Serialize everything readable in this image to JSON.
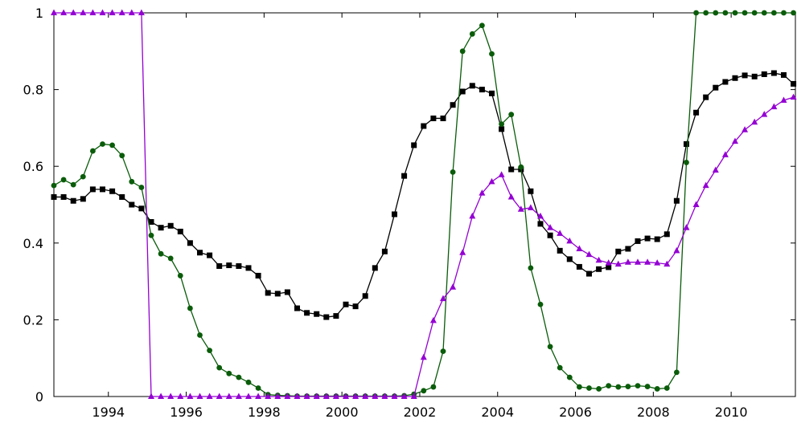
{
  "chart_data": {
    "type": "line",
    "title": "",
    "xlabel": "",
    "ylabel": "",
    "xlim": [
      1992.6,
      2011.65
    ],
    "ylim": [
      0,
      1
    ],
    "x_ticks": [
      1994,
      1996,
      1998,
      2000,
      2002,
      2004,
      2006,
      2008,
      2010
    ],
    "y_ticks": [
      0,
      0.2,
      0.4,
      0.6,
      0.8,
      1
    ],
    "x_tick_labels": [
      "1994",
      "1996",
      "1998",
      "2000",
      "2002",
      "2004",
      "2006",
      "2008",
      "2010"
    ],
    "y_tick_labels": [
      "0",
      "0.2",
      "0.4",
      "0.6",
      "0.8",
      "1"
    ],
    "grid": false,
    "x_start": 1992.6,
    "x_step": 0.25,
    "series": [
      {
        "color": "#000000",
        "marker": "square",
        "values": [
          0.52,
          0.52,
          0.51,
          0.515,
          0.54,
          0.54,
          0.535,
          0.52,
          0.5,
          0.49,
          0.455,
          0.44,
          0.445,
          0.43,
          0.4,
          0.375,
          0.368,
          0.34,
          0.342,
          0.34,
          0.335,
          0.315,
          0.27,
          0.268,
          0.272,
          0.23,
          0.218,
          0.215,
          0.207,
          0.21,
          0.24,
          0.235,
          0.262,
          0.335,
          0.378,
          0.475,
          0.575,
          0.655,
          0.705,
          0.725,
          0.725,
          0.76,
          0.795,
          0.81,
          0.8,
          0.79,
          0.697,
          0.592,
          0.592,
          0.535,
          0.45,
          0.42,
          0.38,
          0.358,
          0.338,
          0.32,
          0.332,
          0.337,
          0.378,
          0.385,
          0.405,
          0.412,
          0.41,
          0.423,
          0.51,
          0.658,
          0.74,
          0.78,
          0.805,
          0.82,
          0.83,
          0.837,
          0.834,
          0.84,
          0.843,
          0.838,
          0.815
        ]
      },
      {
        "color": "#0a5c0a",
        "marker": "circle",
        "values": [
          0.55,
          0.565,
          0.552,
          0.573,
          0.64,
          0.658,
          0.655,
          0.628,
          0.56,
          0.545,
          0.42,
          0.372,
          0.36,
          0.315,
          0.23,
          0.16,
          0.12,
          0.075,
          0.06,
          0.05,
          0.037,
          0.022,
          0.005,
          0.003,
          0.002,
          0.001,
          0.001,
          0.001,
          0.001,
          0.001,
          0.001,
          0.001,
          0.001,
          0.001,
          0.001,
          0.001,
          0.002,
          0.006,
          0.015,
          0.025,
          0.118,
          0.585,
          0.9,
          0.945,
          0.967,
          0.893,
          0.71,
          0.735,
          0.598,
          0.335,
          0.24,
          0.13,
          0.075,
          0.05,
          0.025,
          0.022,
          0.02,
          0.028,
          0.025,
          0.026,
          0.028,
          0.026,
          0.02,
          0.022,
          0.063,
          0.61,
          1,
          1,
          1,
          1,
          1,
          1,
          1,
          1,
          1,
          1,
          1
        ]
      },
      {
        "color": "#9400d3",
        "marker": "triangle",
        "values": [
          1,
          1,
          1,
          1,
          1,
          1,
          1,
          1,
          1,
          1,
          0,
          0,
          0,
          0,
          0,
          0,
          0,
          0,
          0,
          0,
          0,
          0,
          0,
          0,
          0,
          0,
          0,
          0,
          0,
          0,
          0,
          0,
          0,
          0,
          0,
          0,
          0,
          0,
          0.102,
          0.198,
          0.255,
          0.285,
          0.375,
          0.47,
          0.53,
          0.56,
          0.578,
          0.52,
          0.488,
          0.492,
          0.47,
          0.44,
          0.425,
          0.405,
          0.385,
          0.37,
          0.355,
          0.348,
          0.345,
          0.35,
          0.35,
          0.35,
          0.348,
          0.345,
          0.38,
          0.44,
          0.5,
          0.55,
          0.59,
          0.63,
          0.665,
          0.695,
          0.715,
          0.735,
          0.755,
          0.772,
          0.78
        ]
      }
    ]
  }
}
